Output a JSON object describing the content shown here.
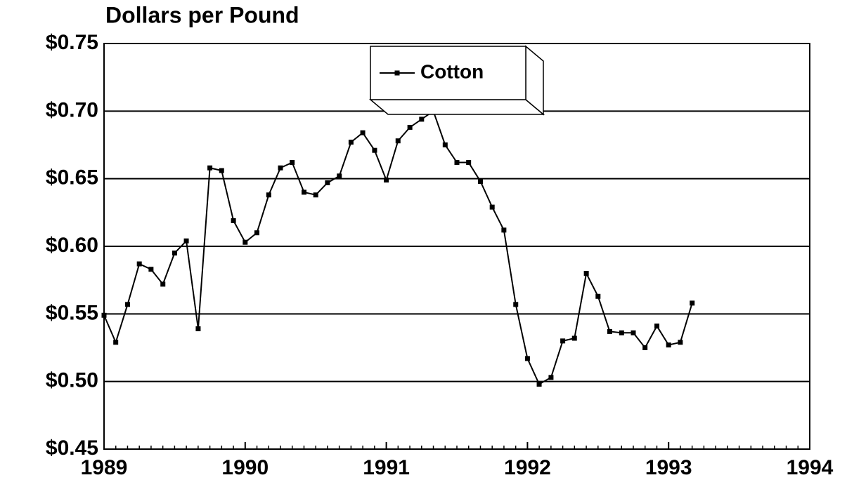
{
  "chart_data": {
    "type": "line",
    "title": "Dollars per Pound",
    "x": [
      1989,
      1989.083,
      1989.167,
      1989.25,
      1989.333,
      1989.417,
      1989.5,
      1989.583,
      1989.667,
      1989.75,
      1989.833,
      1989.917,
      1990,
      1990.083,
      1990.167,
      1990.25,
      1990.333,
      1990.417,
      1990.5,
      1990.583,
      1990.667,
      1990.75,
      1990.833,
      1990.917,
      1991,
      1991.083,
      1991.167,
      1991.25,
      1991.333,
      1991.417,
      1991.5,
      1991.583,
      1991.667,
      1991.75,
      1991.833,
      1991.917,
      1992,
      1992.083,
      1992.167,
      1992.25,
      1992.333,
      1992.417,
      1992.5,
      1992.583,
      1992.667,
      1992.75,
      1992.833,
      1992.917,
      1993,
      1993.083,
      1993.167
    ],
    "series": [
      {
        "name": "Cotton",
        "color": "#000000",
        "values": [
          0.549,
          0.529,
          0.557,
          0.587,
          0.583,
          0.572,
          0.595,
          0.604,
          0.539,
          0.658,
          0.656,
          0.619,
          0.603,
          0.61,
          0.638,
          0.658,
          0.662,
          0.64,
          0.638,
          0.647,
          0.652,
          0.677,
          0.684,
          0.671,
          0.649,
          0.678,
          0.688,
          0.694,
          0.7,
          0.675,
          0.662,
          0.662,
          0.648,
          0.629,
          0.612,
          0.557,
          0.517,
          0.498,
          0.503,
          0.53,
          0.532,
          0.58,
          0.563,
          0.537,
          0.536,
          0.536,
          0.525,
          0.541,
          0.527,
          0.529,
          0.558
        ]
      }
    ],
    "xlim": [
      1989,
      1994
    ],
    "xticks": [
      1989,
      1990,
      1991,
      1992,
      1993,
      1994
    ],
    "ylim": [
      0.45,
      0.75
    ],
    "yticks": [
      {
        "value": 0.45,
        "label": "$0.45"
      },
      {
        "value": 0.5,
        "label": "$0.50"
      },
      {
        "value": 0.55,
        "label": "$0.55"
      },
      {
        "value": 0.6,
        "label": "$0.60"
      },
      {
        "value": 0.65,
        "label": "$0.65"
      },
      {
        "value": 0.7,
        "label": "$0.70"
      },
      {
        "value": 0.75,
        "label": "$0.75"
      }
    ],
    "grid": true
  }
}
